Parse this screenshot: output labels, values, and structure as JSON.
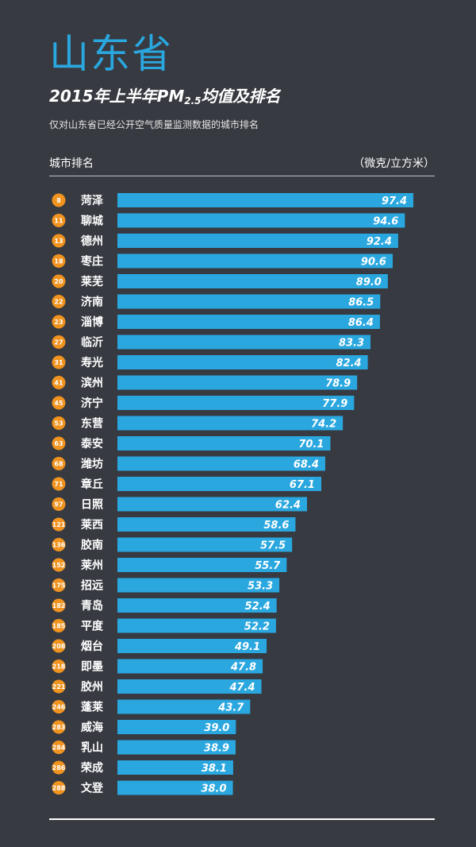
{
  "header": {
    "province": "山东省",
    "title_prefix": "2015年上半年",
    "title_pm": "PM",
    "title_sub": "2.5",
    "title_suffix": "均值及排名",
    "subtitle": "仅对山东省已经公开空气质量监测数据的城市排名",
    "col_left": "城市排名",
    "col_right": "（微克/立方米）"
  },
  "colors": {
    "background": "#373a41",
    "bar": "#2aa7df",
    "badge": "#f0931f",
    "province_title": "#2aa7df"
  },
  "chart_data": {
    "type": "bar",
    "orientation": "horizontal",
    "title": "2015年上半年PM2.5均值及排名",
    "unit": "（微克/立方米）",
    "xlim": [
      0,
      100
    ],
    "categories": [
      "菏泽",
      "聊城",
      "德州",
      "枣庄",
      "莱芜",
      "济南",
      "淄博",
      "临沂",
      "寿光",
      "滨州",
      "济宁",
      "东营",
      "泰安",
      "潍坊",
      "章丘",
      "日照",
      "莱西",
      "胶南",
      "莱州",
      "招远",
      "青岛",
      "平度",
      "烟台",
      "即墨",
      "胶州",
      "蓬莱",
      "威海",
      "乳山",
      "荣成",
      "文登"
    ],
    "ranks": [
      "8",
      "11",
      "13",
      "18",
      "20",
      "22",
      "23",
      "27",
      "31",
      "41",
      "45",
      "53",
      "63",
      "68",
      "71",
      "97",
      "121",
      "136",
      "152",
      "175",
      "182",
      "185",
      "208",
      "218",
      "221",
      "246",
      "283",
      "284",
      "286",
      "288"
    ],
    "values": [
      97.4,
      94.6,
      92.4,
      90.6,
      89.0,
      86.5,
      86.4,
      83.3,
      82.4,
      78.9,
      77.9,
      74.2,
      70.1,
      68.4,
      67.1,
      62.4,
      58.6,
      57.5,
      55.7,
      53.3,
      52.4,
      52.2,
      49.1,
      47.8,
      47.4,
      43.7,
      39.0,
      38.9,
      38.1,
      38.0
    ],
    "value_labels": [
      "97.4",
      "94.6",
      "92.4",
      "90.6",
      "89.0",
      "86.5",
      "86.4",
      "83.3",
      "82.4",
      "78.9",
      "77.9",
      "74.2",
      "70.1",
      "68.4",
      "67.1",
      "62.4",
      "58.6",
      "57.5",
      "55.7",
      "53.3",
      "52.4",
      "52.2",
      "49.1",
      "47.8",
      "47.4",
      "43.7",
      "39.0",
      "38.9",
      "38.1",
      "38.0"
    ]
  }
}
